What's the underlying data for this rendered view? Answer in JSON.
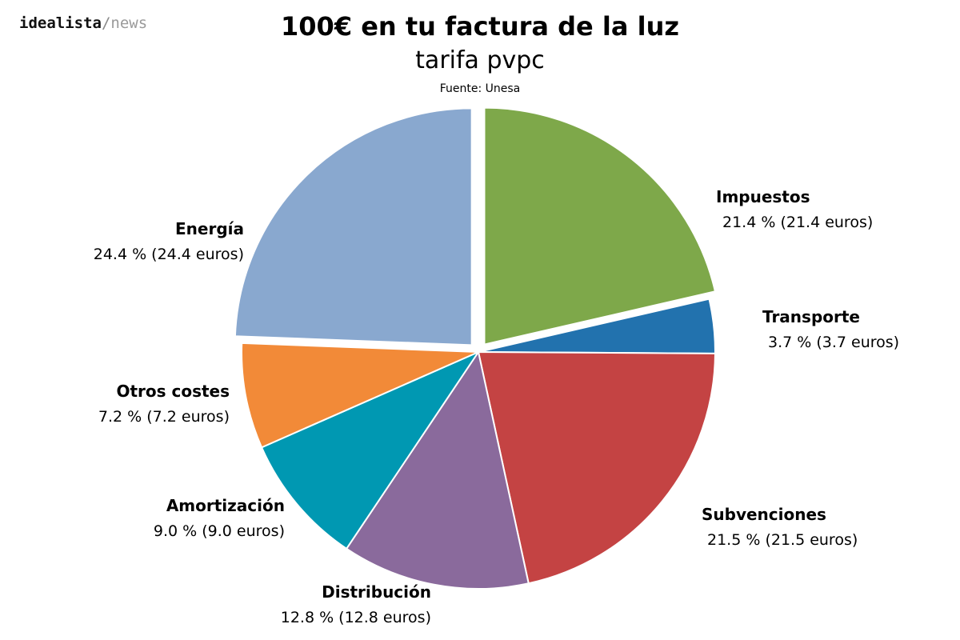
{
  "brand": {
    "name": "idealista",
    "separator": "/",
    "section": "news"
  },
  "chart_data": {
    "type": "pie",
    "title": "100€ en tu factura de la luz",
    "subtitle": "tarifa pvpc",
    "source": "Fuente: Unesa",
    "slices": [
      {
        "label": "Impuestos",
        "value": 21.4,
        "value_text": "21.4 % (21.4 euros)",
        "color": "#7ea84a",
        "exploded": true
      },
      {
        "label": "Transporte",
        "value": 3.7,
        "value_text": "3.7 % (3.7 euros)",
        "color": "#2272ae",
        "exploded": false
      },
      {
        "label": "Subvenciones",
        "value": 21.5,
        "value_text": "21.5 % (21.5 euros)",
        "color": "#c44343",
        "exploded": false
      },
      {
        "label": "Distribución",
        "value": 12.8,
        "value_text": "12.8 % (12.8 euros)",
        "color": "#8a6a9c",
        "exploded": false
      },
      {
        "label": "Amortización",
        "value": 9.0,
        "value_text": "9.0 % (9.0 euros)",
        "color": "#0098b2",
        "exploded": false
      },
      {
        "label": "Otros costes",
        "value": 7.2,
        "value_text": "7.2 % (7.2 euros)",
        "color": "#f28a38",
        "exploded": false
      },
      {
        "label": "Energía",
        "value": 24.4,
        "value_text": "24.4 % (24.4 euros)",
        "color": "#89a8cf",
        "exploded": true
      }
    ]
  }
}
